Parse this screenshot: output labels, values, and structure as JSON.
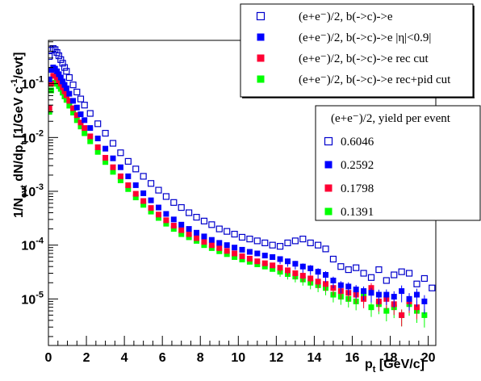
{
  "chart_data": {
    "type": "scatter",
    "xlabel": "p_t [GeV/c]",
    "ylabel": "1/N_evt dN/dp_t [1/GeV c^-1/evt]",
    "xlim": [
      0,
      20.4
    ],
    "ylim_log10": [
      -6,
      0
    ],
    "x_ticks": [
      "0",
      "2",
      "4",
      "6",
      "8",
      "10",
      "12",
      "14",
      "16",
      "18",
      "20"
    ],
    "y_ticks": [
      {
        "base": "10",
        "exp": "-1"
      },
      {
        "base": "10",
        "exp": "-2"
      },
      {
        "base": "10",
        "exp": "-3"
      },
      {
        "base": "10",
        "exp": "-4"
      },
      {
        "base": "10",
        "exp": "-5"
      }
    ],
    "grid": false,
    "legend": {
      "placement": "top-right",
      "entries": [
        {
          "label": "(e+e⁻)/2, b(->c)->e",
          "marker": "open-square",
          "color": "#0000cc"
        },
        {
          "label": "(e+e⁻)/2, b(->c)->e |η|<0.9|",
          "marker": "filled-square",
          "color": "#0000ff"
        },
        {
          "label": "(e+e⁻)/2, b(->c)->e rec cut",
          "marker": "filled-square",
          "color": "#ff0033"
        },
        {
          "label": "(e+e⁻)/2, b(->c)->e rec+pid cut",
          "marker": "filled-square",
          "color": "#00ff00"
        }
      ]
    },
    "yield_box": {
      "title": "(e+e⁻)/2, yield per event",
      "entries": [
        {
          "value": "0.6046",
          "marker": "open-square",
          "color": "#0000cc"
        },
        {
          "value": "0.2592",
          "marker": "filled-square",
          "color": "#0000ff"
        },
        {
          "value": "0.1798",
          "marker": "filled-square",
          "color": "#ff0033"
        },
        {
          "value": "0.1391",
          "marker": "filled-square",
          "color": "#00ff00"
        }
      ]
    },
    "series": [
      {
        "marker": "open-square",
        "color": "#0000cc",
        "x": [
          0.05,
          0.15,
          0.25,
          0.35,
          0.45,
          0.55,
          0.65,
          0.75,
          0.85,
          0.95,
          1.1,
          1.3,
          1.5,
          1.7,
          1.9,
          2.2,
          2.6,
          3.0,
          3.4,
          3.8,
          4.2,
          4.6,
          5.0,
          5.4,
          5.8,
          6.2,
          6.6,
          7.0,
          7.4,
          7.8,
          8.2,
          8.6,
          9.0,
          9.4,
          9.8,
          10.2,
          10.6,
          11.0,
          11.4,
          11.8,
          12.2,
          12.6,
          13.0,
          13.4,
          13.8,
          14.2,
          14.6,
          15.0,
          15.4,
          15.8,
          16.2,
          16.6,
          17.0,
          17.4,
          17.8,
          18.2,
          18.6,
          19.0,
          19.4,
          19.8,
          20.2
        ],
        "y": [
          0.32,
          0.42,
          0.45,
          0.43,
          0.38,
          0.33,
          0.28,
          0.24,
          0.2,
          0.17,
          0.13,
          0.095,
          0.07,
          0.052,
          0.04,
          0.028,
          0.018,
          0.012,
          0.0078,
          0.0052,
          0.0036,
          0.0026,
          0.0019,
          0.0014,
          0.00105,
          0.0008,
          0.00062,
          0.0005,
          0.0004,
          0.00033,
          0.00028,
          0.00024,
          0.0002,
          0.00018,
          0.00016,
          0.00014,
          0.00013,
          0.00012,
          0.00011,
          0.0001,
          9.5e-05,
          0.00011,
          0.00012,
          0.00013,
          0.00011,
          0.0001,
          8.5e-05,
          5.5e-05,
          4e-05,
          3.5e-05,
          3.8e-05,
          3e-05,
          2.5e-05,
          3.5e-05,
          2.2e-05,
          2.8e-05,
          3.2e-05,
          3e-05,
          1.9e-05,
          2.4e-05,
          1.6e-05
        ]
      },
      {
        "marker": "filled-square",
        "color": "#0000ff",
        "x": [
          0.05,
          0.15,
          0.25,
          0.35,
          0.45,
          0.55,
          0.65,
          0.75,
          0.85,
          0.95,
          1.1,
          1.3,
          1.5,
          1.7,
          1.9,
          2.2,
          2.6,
          3.0,
          3.4,
          3.8,
          4.2,
          4.6,
          5.0,
          5.4,
          5.8,
          6.2,
          6.6,
          7.0,
          7.4,
          7.8,
          8.2,
          8.6,
          9.0,
          9.4,
          9.8,
          10.2,
          10.6,
          11.0,
          11.4,
          11.8,
          12.2,
          12.6,
          13.0,
          13.4,
          13.8,
          14.2,
          14.6,
          15.0,
          15.4,
          15.8,
          16.2,
          16.6,
          17.0,
          17.4,
          17.8,
          18.2,
          18.6,
          19.0,
          19.4,
          19.8
        ],
        "y": [
          0.12,
          0.18,
          0.2,
          0.19,
          0.17,
          0.15,
          0.13,
          0.11,
          0.095,
          0.082,
          0.065,
          0.048,
          0.036,
          0.027,
          0.021,
          0.015,
          0.0096,
          0.0062,
          0.0041,
          0.0028,
          0.0019,
          0.0013,
          0.00092,
          0.00068,
          0.0005,
          0.00038,
          0.0003,
          0.00024,
          0.0002,
          0.00017,
          0.000145,
          0.000125,
          0.00011,
          0.0001,
          9e-05,
          8.2e-05,
          7.5e-05,
          7e-05,
          6.4e-05,
          6e-05,
          5.5e-05,
          5e-05,
          4.5e-05,
          4e-05,
          3.7e-05,
          3.2e-05,
          2.8e-05,
          2.2e-05,
          1.8e-05,
          1.7e-05,
          1.5e-05,
          1.4e-05,
          1.3e-05,
          1.2e-05,
          1.2e-05,
          1.1e-05,
          1.4e-05,
          1e-05,
          1.2e-05,
          9e-06
        ]
      },
      {
        "marker": "filled-square",
        "color": "#ff0033",
        "x": [
          0.05,
          0.15,
          0.25,
          0.35,
          0.45,
          0.55,
          0.65,
          0.75,
          0.85,
          0.95,
          1.1,
          1.3,
          1.5,
          1.7,
          1.9,
          2.2,
          2.6,
          3.0,
          3.4,
          3.8,
          4.2,
          4.6,
          5.0,
          5.4,
          5.8,
          6.2,
          6.6,
          7.0,
          7.4,
          7.8,
          8.2,
          8.6,
          9.0,
          9.4,
          9.8,
          10.2,
          10.6,
          11.0,
          11.4,
          11.8,
          12.2,
          12.6,
          13.0,
          13.4,
          13.8,
          14.2,
          14.6,
          15.0,
          15.4,
          15.8,
          16.2,
          16.6,
          17.0,
          17.4,
          17.8,
          18.2,
          18.6,
          19.0,
          19.4
        ],
        "y": [
          0.035,
          0.1,
          0.14,
          0.14,
          0.13,
          0.115,
          0.1,
          0.085,
          0.072,
          0.061,
          0.048,
          0.035,
          0.026,
          0.019,
          0.015,
          0.0105,
          0.0066,
          0.0042,
          0.0028,
          0.0019,
          0.0013,
          0.0009,
          0.00066,
          0.00049,
          0.00037,
          0.00029,
          0.00023,
          0.00019,
          0.00016,
          0.000135,
          0.000115,
          0.0001,
          8.8e-05,
          7.8e-05,
          7e-05,
          6.2e-05,
          5.6e-05,
          5e-05,
          4.6e-05,
          4.2e-05,
          3.8e-05,
          3.4e-05,
          3e-05,
          2.7e-05,
          2.4e-05,
          2.1e-05,
          1.9e-05,
          1.6e-05,
          1.4e-05,
          1.3e-05,
          1.2e-05,
          1e-05,
          1.6e-05,
          9e-06,
          1e-05,
          8e-06,
          5e-06,
          9e-06,
          7e-06
        ]
      },
      {
        "marker": "filled-square",
        "color": "#00ff00",
        "x": [
          0.05,
          0.15,
          0.25,
          0.35,
          0.45,
          0.55,
          0.65,
          0.75,
          0.85,
          0.95,
          1.1,
          1.3,
          1.5,
          1.7,
          1.9,
          2.2,
          2.6,
          3.0,
          3.4,
          3.8,
          4.2,
          4.6,
          5.0,
          5.4,
          5.8,
          6.2,
          6.6,
          7.0,
          7.4,
          7.8,
          8.2,
          8.6,
          9.0,
          9.4,
          9.8,
          10.2,
          10.6,
          11.0,
          11.4,
          11.8,
          12.2,
          12.6,
          13.0,
          13.4,
          13.8,
          14.2,
          14.6,
          15.0,
          15.4,
          15.8,
          16.2,
          16.6,
          17.0,
          17.4,
          17.8,
          18.2,
          18.6,
          19.0,
          19.4,
          19.8
        ],
        "y": [
          0.03,
          0.075,
          0.1,
          0.105,
          0.1,
          0.09,
          0.08,
          0.068,
          0.058,
          0.05,
          0.039,
          0.029,
          0.021,
          0.016,
          0.012,
          0.0085,
          0.0054,
          0.0035,
          0.0023,
          0.0016,
          0.0011,
          0.00077,
          0.00056,
          0.00042,
          0.00032,
          0.00025,
          0.0002,
          0.00016,
          0.00014,
          0.00012,
          0.0001,
          8.8e-05,
          7.7e-05,
          6.8e-05,
          6e-05,
          5.4e-05,
          4.9e-05,
          4.4e-05,
          4e-05,
          3.6e-05,
          3.2e-05,
          2.9e-05,
          2.6e-05,
          2.3e-05,
          2e-05,
          1.8e-05,
          1.6e-05,
          1.2e-05,
          1.1e-05,
          1e-05,
          9e-06,
          1.2e-05,
          7e-06,
          8e-06,
          6e-06,
          7e-06,
          5e-06,
          8e-06,
          6e-06,
          5e-06
        ]
      }
    ]
  }
}
